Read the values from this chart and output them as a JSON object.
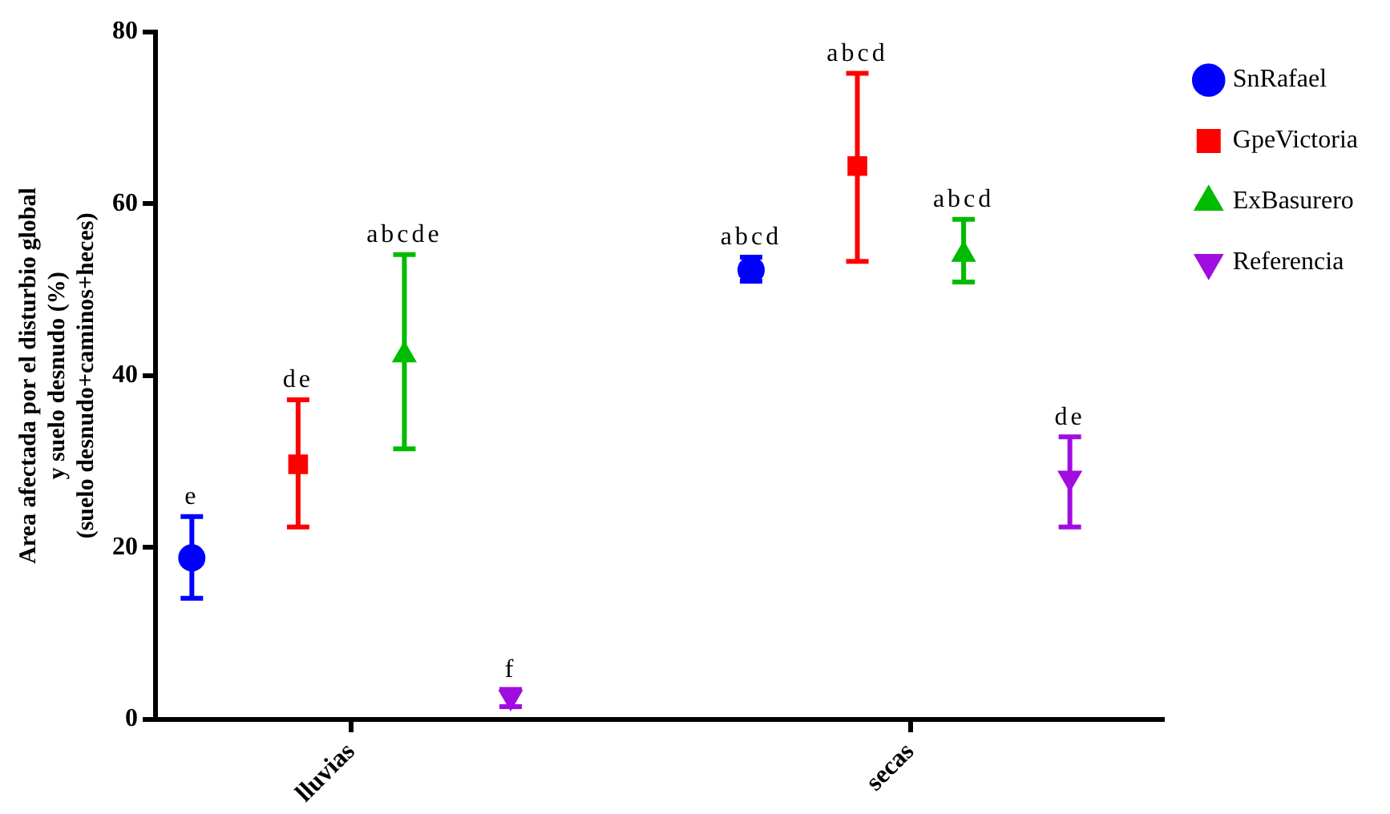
{
  "chart_data": {
    "type": "scatter",
    "ylabel": "Area afectada por el disturbio global\ny suelo desnudo (%)\n(suelo desnudo+caminos+heces)",
    "categories": [
      "lluvias",
      "secas"
    ],
    "ylim": [
      0,
      80
    ],
    "yticks": [
      0,
      20,
      40,
      60,
      80
    ],
    "grid": false,
    "legend": "right",
    "series": [
      {
        "name": "SnRafael",
        "color": "#0000ff",
        "marker": "circle",
        "values": [
          18.8,
          52.3
        ],
        "errors": [
          [
            14.1,
            23.6
          ],
          [
            51.0,
            53.8
          ]
        ]
      },
      {
        "name": "GpeVictoria",
        "color": "#ff0000",
        "marker": "square",
        "values": [
          29.7,
          64.4
        ],
        "errors": [
          [
            22.4,
            37.2
          ],
          [
            53.3,
            75.2
          ]
        ]
      },
      {
        "name": "ExBasurero",
        "color": "#00bb00",
        "marker": "triangle",
        "values": [
          42.4,
          54.1
        ],
        "errors": [
          [
            31.5,
            54.1
          ],
          [
            50.9,
            58.2
          ]
        ]
      },
      {
        "name": "Referencia",
        "color": "#a00de0",
        "marker": "triangle-down",
        "values": [
          2.6,
          28.1
        ],
        "errors": [
          [
            1.5,
            3.5
          ],
          [
            22.4,
            32.9
          ]
        ]
      }
    ],
    "annotations": [
      "e",
      "de",
      "abcde",
      "f",
      "abcd",
      "abcd",
      "abcd",
      "de"
    ]
  }
}
